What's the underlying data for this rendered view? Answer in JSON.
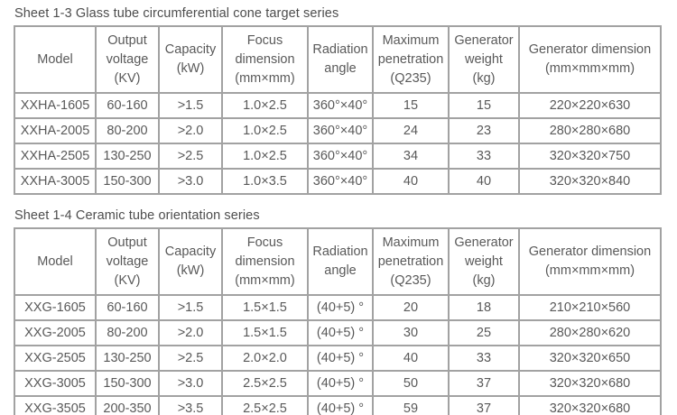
{
  "page": {
    "background": "#ffffff",
    "text_color": "#595959",
    "border_color": "#a2a2a2"
  },
  "tables": [
    {
      "title": "Sheet 1-3 Glass tube circumferential cone target series",
      "columns": [
        {
          "id": "model",
          "lines": [
            "Model"
          ]
        },
        {
          "id": "output-voltage",
          "lines": [
            "Output",
            "voltage",
            "(KV)"
          ]
        },
        {
          "id": "capacity",
          "lines": [
            "Capacity",
            "(kW)"
          ]
        },
        {
          "id": "focus-dimension",
          "lines": [
            "Focus",
            "dimension",
            "(mm×mm)"
          ]
        },
        {
          "id": "radiation-angle",
          "lines": [
            "Radiation",
            "angle"
          ]
        },
        {
          "id": "maximum-penetration",
          "lines": [
            "Maximum",
            "penetration",
            "(Q235)"
          ]
        },
        {
          "id": "generator-weight",
          "lines": [
            "Generator",
            "weight",
            "(kg)"
          ]
        },
        {
          "id": "generator-dimension",
          "lines": [
            "Generator dimension",
            "(mm×mm×mm)"
          ]
        }
      ],
      "rows": [
        [
          "XXHA-1605",
          "60-160",
          ">1.5",
          "1.0×2.5",
          "360°×40°",
          "15",
          "15",
          "220×220×630"
        ],
        [
          "XXHA-2005",
          "80-200",
          ">2.0",
          "1.0×2.5",
          "360°×40°",
          "24",
          "23",
          "280×280×680"
        ],
        [
          "XXHA-2505",
          "130-250",
          ">2.5",
          "1.0×2.5",
          "360°×40°",
          "34",
          "33",
          "320×320×750"
        ],
        [
          "XXHA-3005",
          "150-300",
          ">3.0",
          "1.0×3.5",
          "360°×40°",
          "40",
          "40",
          "320×320×840"
        ]
      ]
    },
    {
      "title": "Sheet 1-4 Ceramic tube orientation series",
      "columns": [
        {
          "id": "model",
          "lines": [
            "Model"
          ]
        },
        {
          "id": "output-voltage",
          "lines": [
            "Output",
            "voltage",
            "(KV)"
          ]
        },
        {
          "id": "capacity",
          "lines": [
            "Capacity",
            "(kW)"
          ]
        },
        {
          "id": "focus-dimension",
          "lines": [
            "Focus",
            "dimension",
            "(mm×mm)"
          ]
        },
        {
          "id": "radiation-angle",
          "lines": [
            "Radiation",
            "angle"
          ]
        },
        {
          "id": "maximum-penetration",
          "lines": [
            "Maximum",
            "penetration",
            "(Q235)"
          ]
        },
        {
          "id": "generator-weight",
          "lines": [
            "Generator",
            "weight",
            "(kg)"
          ]
        },
        {
          "id": "generator-dimension",
          "lines": [
            "Generator dimension",
            "(mm×mm×mm)"
          ]
        }
      ],
      "rows": [
        [
          "XXG-1605",
          "60-160",
          ">1.5",
          "1.5×1.5",
          "(40+5) °",
          "20",
          "18",
          "210×210×560"
        ],
        [
          "XXG-2005",
          "80-200",
          ">2.0",
          "1.5×1.5",
          "(40+5) °",
          "30",
          "25",
          "280×280×620"
        ],
        [
          "XXG-2505",
          "130-250",
          ">2.5",
          "2.0×2.0",
          "(40+5) °",
          "40",
          "33",
          "320×320×650"
        ],
        [
          "XXG-3005",
          "150-300",
          ">3.0",
          "2.5×2.5",
          "(40+5) °",
          "50",
          "37",
          "320×320×680"
        ],
        [
          "XXG-3505",
          "200-350",
          ">3.5",
          "2.5×2.5",
          "(40+5) °",
          "59",
          "37",
          "320×320×680"
        ]
      ]
    }
  ]
}
